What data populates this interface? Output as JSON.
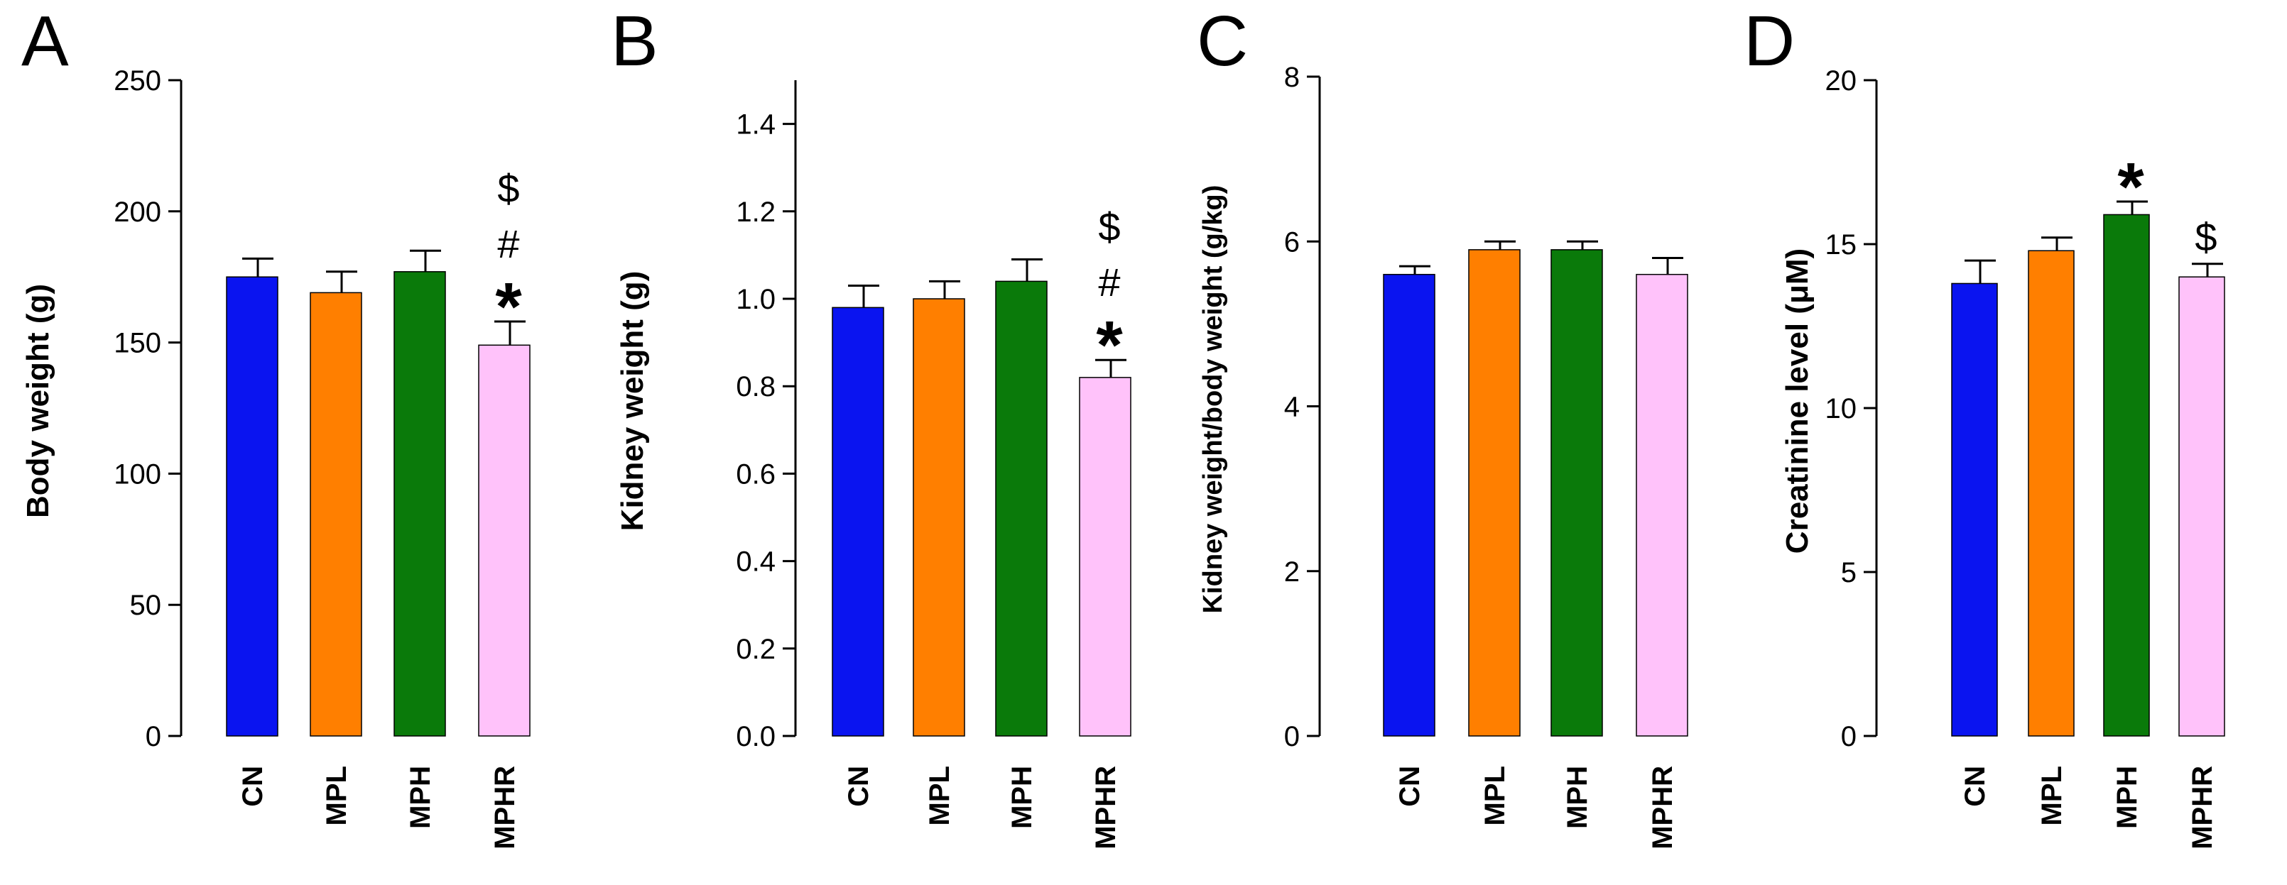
{
  "colors": {
    "CN": "#0a14f0",
    "MPL": "#ff7f00",
    "MPH": "#0a7a0a",
    "MPHR": "#ffc2fa",
    "axis": "#000000"
  },
  "chart_data": [
    {
      "type": "bar",
      "panel": "A",
      "ylabel": "Body weight (g)",
      "categories": [
        "CN",
        "MPL",
        "MPH",
        "MPHR"
      ],
      "values": [
        175,
        169,
        177,
        149
      ],
      "errors": [
        7,
        8,
        8,
        9
      ],
      "ylim": [
        0,
        250
      ],
      "yticks": [
        0,
        50,
        100,
        150,
        200,
        250
      ],
      "tick_labels": [
        "0",
        "50",
        "100",
        "150",
        "200",
        "250"
      ],
      "annotations": [
        {
          "category": "MPHR",
          "marks": [
            "*",
            "#",
            "$"
          ]
        }
      ]
    },
    {
      "type": "bar",
      "panel": "B",
      "ylabel": "Kidney weight (g)",
      "categories": [
        "CN",
        "MPL",
        "MPH",
        "MPHR"
      ],
      "values": [
        0.98,
        1.0,
        1.04,
        0.82
      ],
      "errors": [
        0.05,
        0.04,
        0.05,
        0.04
      ],
      "ylim": [
        0,
        1.5
      ],
      "yticks": [
        0,
        0.2,
        0.4,
        0.6,
        0.8,
        1.0,
        1.2,
        1.4
      ],
      "tick_labels": [
        "0.0",
        "0.2",
        "0.4",
        "0.6",
        "0.8",
        "1.0",
        "1.2",
        "1.4"
      ],
      "annotations": [
        {
          "category": "MPHR",
          "marks": [
            "*",
            "#",
            "$"
          ]
        }
      ]
    },
    {
      "type": "bar",
      "panel": "C",
      "ylabel": "Kidney weight/body weight (g/kg)",
      "categories": [
        "CN",
        "MPL",
        "MPH",
        "MPHR"
      ],
      "values": [
        5.6,
        5.9,
        5.9,
        5.6
      ],
      "errors": [
        0.1,
        0.1,
        0.1,
        0.2
      ],
      "ylim": [
        0,
        8
      ],
      "yticks": [
        0,
        2,
        4,
        6,
        8
      ],
      "tick_labels": [
        "0",
        "2",
        "4",
        "6",
        "8"
      ],
      "annotations": []
    },
    {
      "type": "bar",
      "panel": "D",
      "ylabel": "Creatinine level (μM)",
      "categories": [
        "CN",
        "MPL",
        "MPH",
        "MPHR"
      ],
      "values": [
        13.8,
        14.8,
        15.9,
        14.0
      ],
      "errors": [
        0.7,
        0.4,
        0.4,
        0.4
      ],
      "ylim": [
        0,
        20
      ],
      "yticks": [
        0,
        5,
        10,
        15,
        20
      ],
      "tick_labels": [
        "0",
        "5",
        "10",
        "15",
        "20"
      ],
      "annotations": [
        {
          "category": "MPH",
          "marks": [
            "*"
          ]
        },
        {
          "category": "MPHR",
          "marks": [
            "$"
          ]
        }
      ]
    }
  ]
}
